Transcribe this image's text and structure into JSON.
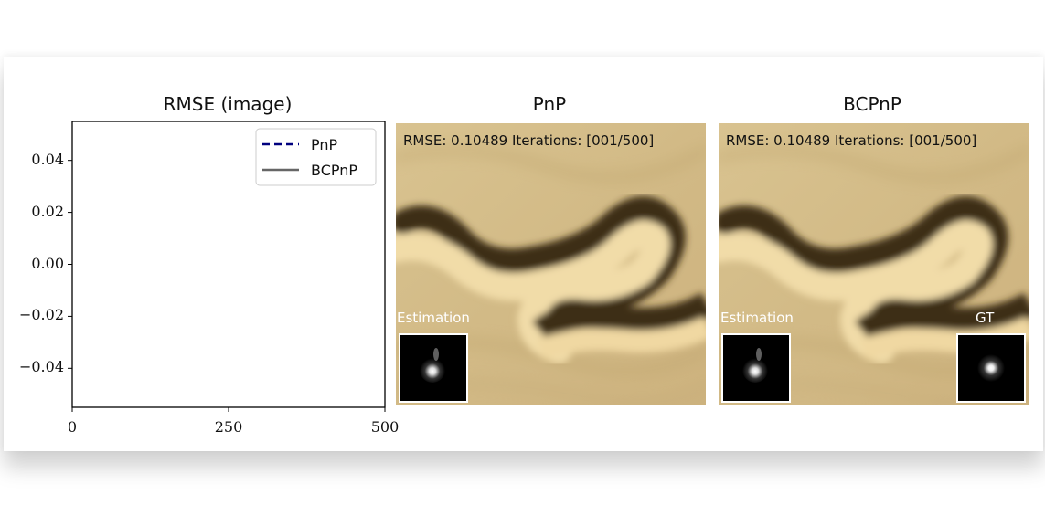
{
  "chart_data": {
    "type": "line",
    "title": "RMSE (image)",
    "xlabel": "",
    "ylabel": "",
    "xlim": [
      0,
      500
    ],
    "ylim": [
      -0.055,
      0.055
    ],
    "x_ticks": [
      0,
      250,
      500
    ],
    "y_ticks": [
      0.04,
      0.02,
      0.0,
      -0.02,
      -0.04
    ],
    "x_tick_labels": [
      "0",
      "250",
      "500"
    ],
    "y_tick_labels": [
      "0.04",
      "0.02",
      "0.00",
      "−0.02",
      "−0.04"
    ],
    "series": [
      {
        "name": "PnP",
        "style": "dashed",
        "color": "#00007f",
        "x": [],
        "y": []
      },
      {
        "name": "BCPnP",
        "style": "solid",
        "color": "#666666",
        "x": [],
        "y": []
      }
    ],
    "legend_position": "top-right",
    "grid": false
  },
  "panels": {
    "pnp": {
      "title": "PnP",
      "status": "RMSE: 0.10489 Iterations:  [001/500]",
      "estimation_label": "Estimation"
    },
    "bcpnp": {
      "title": "BCPnP",
      "status": "RMSE: 0.10489 Iterations:  [001/500]",
      "estimation_label": "Estimation",
      "gt_label": "GT"
    }
  },
  "colors": {
    "sand_light": "#e8d2a0",
    "sand_base": "#d4bd8a",
    "sand_dark": "#8a7040",
    "groove_shadow": "#4a3a1e",
    "kernel_bg": "#000000"
  }
}
